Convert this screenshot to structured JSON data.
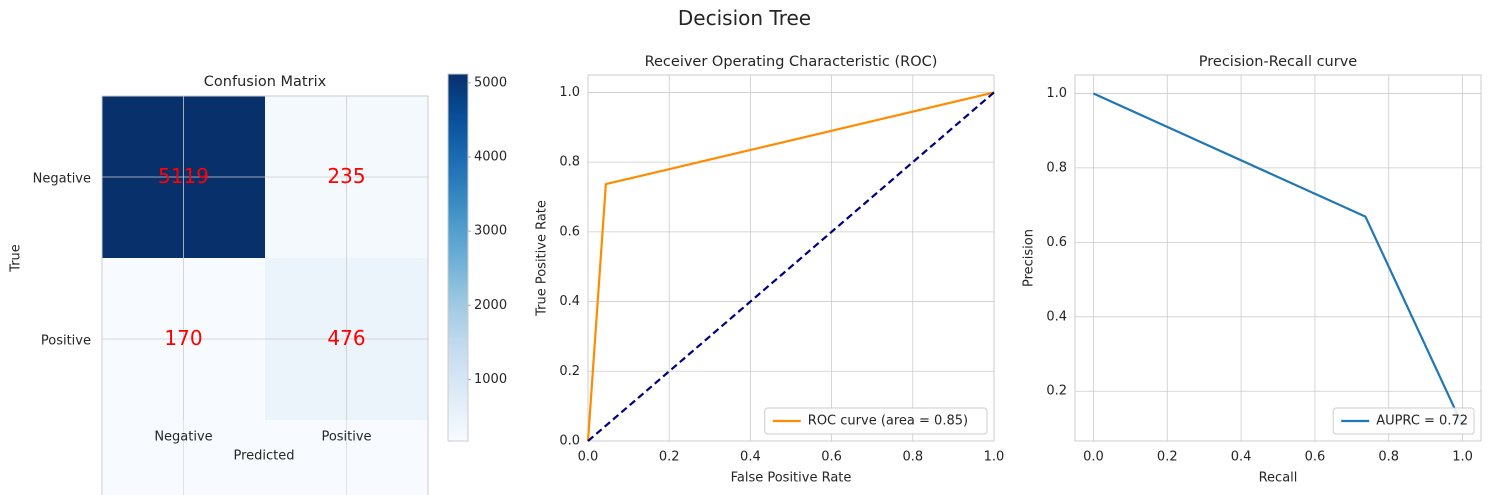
{
  "figure": {
    "suptitle": "Decision Tree"
  },
  "chart_data": [
    {
      "type": "heatmap",
      "title": "Confusion Matrix",
      "xlabel": "Predicted",
      "ylabel": "True",
      "x_tick_labels": [
        "Negative",
        "Positive"
      ],
      "y_tick_labels": [
        "Negative",
        "Positive"
      ],
      "values": [
        [
          5119,
          235
        ],
        [
          170,
          476
        ]
      ],
      "cell_text_color": "#ff0000",
      "colormap": "Blues",
      "colorbar": {
        "range": [
          170,
          5119
        ],
        "ticks": [
          1000,
          2000,
          3000,
          4000,
          5000
        ],
        "tick_labels": [
          "1000",
          "2000",
          "3000",
          "4000",
          "5000"
        ]
      },
      "grid": true
    },
    {
      "type": "line",
      "title": "Receiver Operating Characteristic (ROC)",
      "xlabel": "False Positive Rate",
      "ylabel": "True Positive Rate",
      "xlim": [
        0.0,
        1.0
      ],
      "ylim": [
        0.0,
        1.05
      ],
      "x_ticks": [
        "0.0",
        "0.2",
        "0.4",
        "0.6",
        "0.8",
        "1.0"
      ],
      "y_ticks": [
        "0.0",
        "0.2",
        "0.4",
        "0.6",
        "0.8",
        "1.0"
      ],
      "grid": true,
      "legend_position": "lower-right",
      "series": [
        {
          "name": "ROC curve (area = 0.85)",
          "color": "#ff8c00",
          "style": "solid",
          "x": [
            0.0,
            0.044,
            1.0
          ],
          "y": [
            0.0,
            0.737,
            1.0
          ]
        },
        {
          "color": "#000080",
          "style": "dashed",
          "x": [
            0.0,
            1.0
          ],
          "y": [
            0.0,
            1.0
          ]
        }
      ]
    },
    {
      "type": "line",
      "title": "Precision-Recall curve",
      "xlabel": "Recall",
      "ylabel": "Precision",
      "xlim": [
        -0.05,
        1.05
      ],
      "ylim": [
        0.0663,
        1.0496
      ],
      "x_ticks": [
        "0.0",
        "0.2",
        "0.4",
        "0.6",
        "0.8",
        "1.0"
      ],
      "y_ticks": [
        "0.2",
        "0.4",
        "0.6",
        "0.8",
        "1.0"
      ],
      "grid": true,
      "legend_position": "lower-right",
      "series": [
        {
          "name": "AUPRC = 0.72",
          "color": "#1f77b4",
          "style": "solid",
          "x": [
            0.0,
            0.737,
            1.0
          ],
          "y": [
            1.0,
            0.669,
            0.108
          ]
        }
      ]
    }
  ]
}
